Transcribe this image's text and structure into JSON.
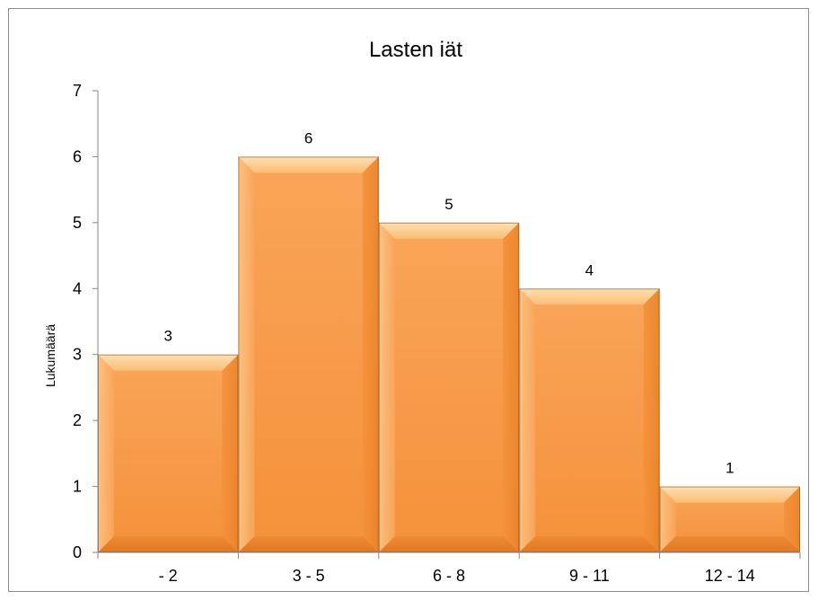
{
  "chart_data": {
    "type": "bar",
    "title": "Lasten iät",
    "xlabel": "",
    "ylabel": "Lukumäärä",
    "categories": [
      "- 2",
      "3 - 5",
      "6 - 8",
      "9 - 11",
      "12 - 14"
    ],
    "values": [
      3,
      6,
      5,
      4,
      1
    ],
    "ylim": [
      0,
      7
    ],
    "yticks": [
      0,
      1,
      2,
      3,
      4,
      5,
      6,
      7
    ],
    "data_labels": true,
    "grid": false,
    "legend": "none",
    "bar_color": "#F79646",
    "bar_style": "beveled"
  }
}
